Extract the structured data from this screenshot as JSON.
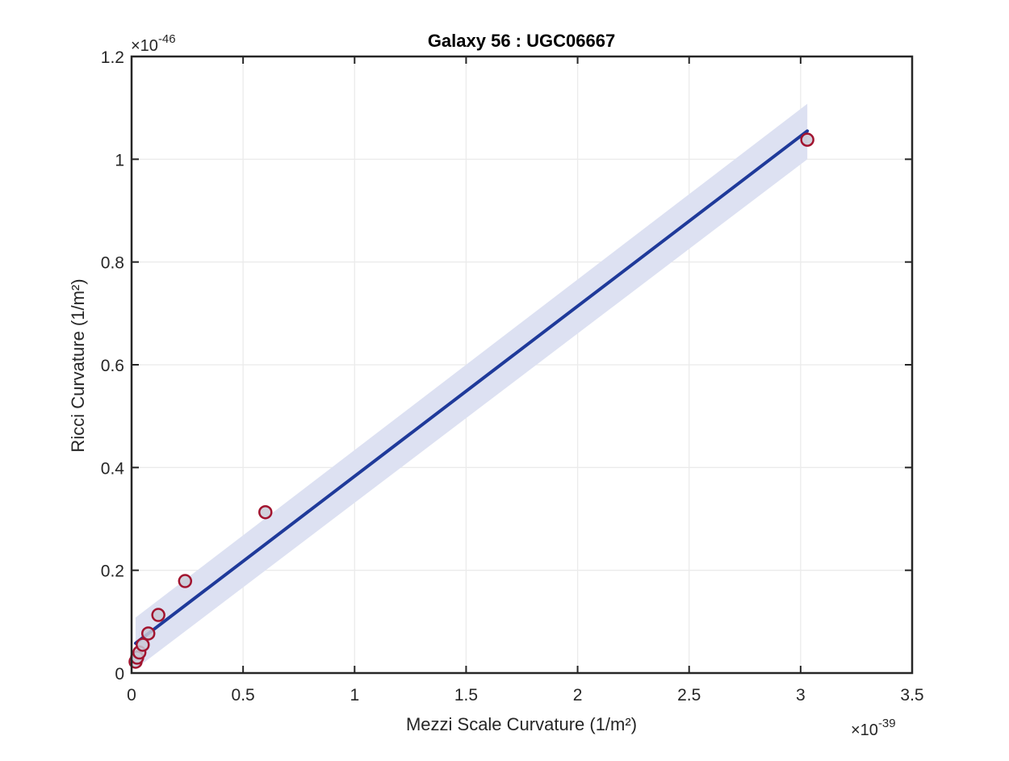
{
  "chart_data": {
    "type": "scatter",
    "title": "Galaxy 56 : UGC06667",
    "xlabel": "Mezzi Scale Curvature (1/m²)",
    "ylabel": "Ricci Curvature (1/m²)",
    "x_exponent_label": "×10",
    "x_exponent_power": "-39",
    "y_exponent_label": "×10",
    "y_exponent_power": "-46",
    "xlim": [
      0,
      3.5
    ],
    "ylim": [
      0,
      1.2
    ],
    "xticks": [
      0,
      0.5,
      1,
      1.5,
      2,
      2.5,
      3,
      3.5
    ],
    "xtick_labels": [
      "0",
      "0.5",
      "1",
      "1.5",
      "2",
      "2.5",
      "3",
      "3.5"
    ],
    "yticks": [
      0,
      0.2,
      0.4,
      0.6,
      0.8,
      1,
      1.2
    ],
    "ytick_labels": [
      "0",
      "0.2",
      "0.4",
      "0.6",
      "0.8",
      "1",
      "1.2"
    ],
    "grid": true,
    "series": [
      {
        "kind": "scatter",
        "color": "#a2142f",
        "fill": "#c9c9d6",
        "x": [
          0.018,
          0.025,
          0.035,
          0.05,
          0.075,
          0.12,
          0.24,
          0.6,
          3.03
        ],
        "y": [
          0.022,
          0.03,
          0.04,
          0.055,
          0.077,
          0.113,
          0.179,
          0.313,
          1.038
        ]
      },
      {
        "kind": "fit-line",
        "color": "#1f3a9a",
        "x": [
          0.018,
          3.03
        ],
        "y": [
          0.058,
          1.055
        ]
      },
      {
        "kind": "confidence-band",
        "color": "#dde1f2",
        "x": [
          0.018,
          3.03
        ],
        "upper": [
          0.108,
          1.108
        ],
        "lower": [
          0.008,
          1.0
        ]
      }
    ]
  }
}
